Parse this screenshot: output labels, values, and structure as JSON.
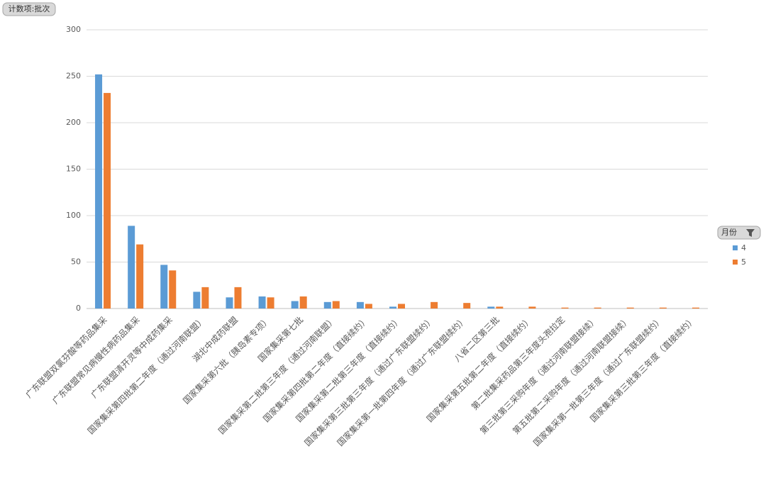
{
  "chart_data": {
    "type": "bar",
    "field_button": "计数项:批次",
    "legend_title": "月份",
    "categories": [
      "广东联盟双氯芬酸等药品集采",
      "广东联盟常见病慢性病药品集采",
      "广东联盟清开灵等中成药集采",
      "国家集采第四批第二年度（通过河南联盟）",
      "湖北中成药联盟",
      "国家集采第六批（胰岛素专项）",
      "国家集采第七批",
      "国家集采第二批第三年度（通过河南联盟）",
      "国家集采第四批第二年度（直接续约）",
      "国家集采第二批第三年度（直接续约）",
      "国家集采第三批第三年度（通过广东联盟续约）",
      "国家集采第一批第四年度（通过广东联盟续约）",
      "八省二区第三批",
      "国家集采第五批第二年度（直接续约）",
      "第二批集采药品第三年度头孢拉定",
      "第三批第三采购年度（通过河南联盟接续）",
      "第五批第二采购年度（通过河南联盟接续）",
      "国家集采第一批第三年度（通过广东联盟续约）",
      "国家集采第三批第三年度（直接续约）"
    ],
    "series": [
      {
        "name": "4",
        "color": "#5b9bd5",
        "values": [
          252,
          89,
          47,
          18,
          12,
          13,
          8,
          7,
          7,
          2,
          null,
          null,
          2,
          null,
          null,
          null,
          null,
          null,
          null
        ]
      },
      {
        "name": "5",
        "color": "#ed7d31",
        "values": [
          232,
          69,
          41,
          23,
          23,
          12,
          13,
          8,
          5,
          5,
          7,
          6,
          2,
          2,
          1,
          1,
          1,
          1,
          1
        ]
      }
    ],
    "ylim": [
      0,
      300
    ],
    "yticks": [
      0,
      50,
      100,
      150,
      200,
      250,
      300
    ],
    "grid": true,
    "legend": "right"
  }
}
